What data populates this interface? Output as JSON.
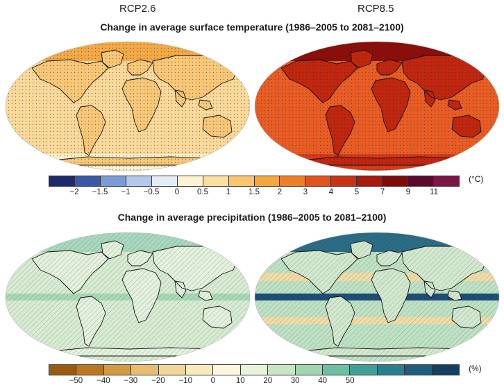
{
  "scenarios": [
    "RCP2.6",
    "RCP8.5"
  ],
  "temperature": {
    "title": "Change in average surface temperature (1986–2005 to 2081–2100)",
    "unit": "(°C)",
    "colorbar": {
      "colors": [
        "#1d2a6b",
        "#3a58a8",
        "#7b9bd4",
        "#b3c8ea",
        "#e3ecf7",
        "#fff3d4",
        "#fbe0a1",
        "#f9c66d",
        "#f5a63f",
        "#ef7f26",
        "#e1541d",
        "#c93217",
        "#a8190f",
        "#7f0c0b",
        "#5a0a2e",
        "#7b1646"
      ],
      "ticks": [
        "−2",
        "−1.5",
        "−1",
        "−0.5",
        "0",
        "0.5",
        "1",
        "1.5",
        "2",
        "3",
        "4",
        "5",
        "7",
        "9",
        "11"
      ]
    },
    "rcp26": {
      "ocean": "#fbd99a",
      "land": "#f8c878",
      "arctic": "#f4a947",
      "antarctic": "#fff0cc"
    },
    "rcp85": {
      "ocean": "#e95d24",
      "land": "#c1260f",
      "arctic": "#8c0e0a",
      "antarctic": "#d63a1a"
    }
  },
  "precipitation": {
    "title": "Change in average precipitation (1986–2005 to 2081–2100)",
    "unit": "(%)",
    "colorbar": {
      "colors": [
        "#9a5a0e",
        "#b9781f",
        "#d39a41",
        "#e6bd6f",
        "#f1d69a",
        "#f8eabd",
        "#fdf7dd",
        "#e9f3d9",
        "#c8e6c3",
        "#a1d5b0",
        "#6dbfa3",
        "#3f9f96",
        "#2a7f8c",
        "#1d5e7c",
        "#143e62"
      ],
      "ticks": [
        "−50",
        "−40",
        "−30",
        "−20",
        "−10",
        "0",
        "10",
        "20",
        "30",
        "40",
        "50"
      ]
    },
    "rcp26": {
      "ocean": "#d7ecd2",
      "land": "#e3f1dd",
      "arctic": "#a9d8c0",
      "equator": "#a8d9b6"
    },
    "rcp85": {
      "ocean": "#bfe2c4",
      "land": "#d2e9cf",
      "arctic": "#2a6d87",
      "equator": "#1d4e78",
      "dry": "#f2dca6"
    }
  }
}
